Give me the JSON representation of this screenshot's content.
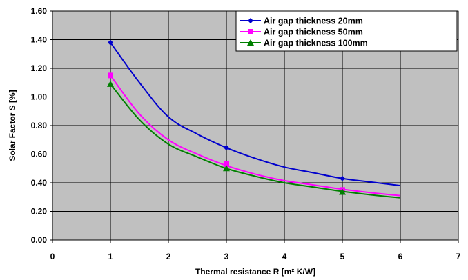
{
  "chart_data": {
    "type": "line",
    "title": "",
    "xlabel": "Thermal resistance R [m² K/W]",
    "ylabel": "Solar Factor S [%]",
    "xlim": [
      0,
      7
    ],
    "ylim": [
      0,
      1.6
    ],
    "x_ticks": [
      "0",
      "1",
      "2",
      "3",
      "4",
      "5",
      "6",
      "7"
    ],
    "y_ticks": [
      "0.00",
      "0.20",
      "0.40",
      "0.60",
      "0.80",
      "1.00",
      "1.20",
      "1.40",
      "1.60"
    ],
    "grid": true,
    "legend_position": "top-right",
    "plot_background": "#c0c0c0",
    "series": [
      {
        "name": "Air gap thickness 20mm",
        "color": "#0000cc",
        "marker": "diamond",
        "points": [
          [
            1,
            1.38
          ],
          [
            3,
            0.645
          ],
          [
            5,
            0.43
          ]
        ],
        "curve": [
          [
            1,
            1.38
          ],
          [
            1.5,
            1.1
          ],
          [
            2,
            0.86
          ],
          [
            2.5,
            0.74
          ],
          [
            3,
            0.645
          ],
          [
            3.5,
            0.57
          ],
          [
            4,
            0.51
          ],
          [
            4.5,
            0.47
          ],
          [
            5,
            0.43
          ],
          [
            5.5,
            0.405
          ],
          [
            6,
            0.38
          ]
        ]
      },
      {
        "name": "Air gap thickness 50mm",
        "color": "#ff00ff",
        "marker": "square",
        "points": [
          [
            1,
            1.15
          ],
          [
            3,
            0.53
          ],
          [
            5,
            0.35
          ]
        ],
        "curve": [
          [
            1,
            1.15
          ],
          [
            1.5,
            0.88
          ],
          [
            2,
            0.7
          ],
          [
            2.5,
            0.6
          ],
          [
            3,
            0.52
          ],
          [
            3.5,
            0.46
          ],
          [
            4,
            0.415
          ],
          [
            4.5,
            0.385
          ],
          [
            5,
            0.355
          ],
          [
            5.5,
            0.33
          ],
          [
            6,
            0.31
          ]
        ]
      },
      {
        "name": "Air gap thickness 100mm",
        "color": "#008000",
        "marker": "triangle",
        "points": [
          [
            1,
            1.09
          ],
          [
            3,
            0.5
          ],
          [
            5,
            0.335
          ]
        ],
        "curve": [
          [
            1,
            1.09
          ],
          [
            1.5,
            0.84
          ],
          [
            2,
            0.67
          ],
          [
            2.5,
            0.58
          ],
          [
            3,
            0.5
          ],
          [
            3.5,
            0.445
          ],
          [
            4,
            0.4
          ],
          [
            4.5,
            0.37
          ],
          [
            5,
            0.34
          ],
          [
            5.5,
            0.315
          ],
          [
            6,
            0.295
          ]
        ]
      }
    ]
  }
}
